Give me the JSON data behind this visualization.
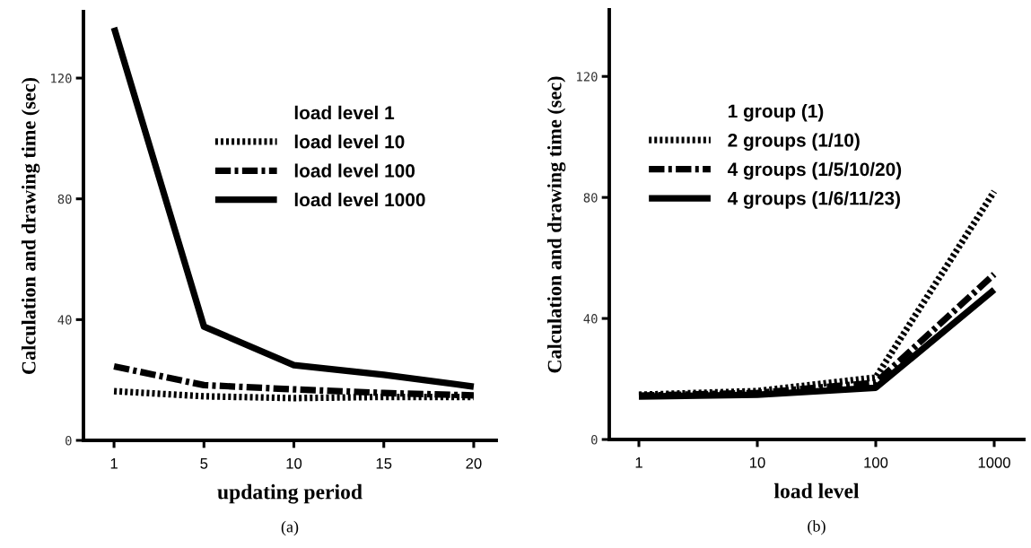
{
  "chart_data": [
    {
      "type": "line",
      "xlabel": "updating period",
      "ylabel": "Calculation and drawing time (sec)",
      "categories": [
        "1",
        "5",
        "10",
        "15",
        "20"
      ],
      "ylim": [
        0,
        142
      ],
      "yticks": [
        0,
        40,
        80,
        120
      ],
      "legend": "top right",
      "annotations": [
        "(a)"
      ],
      "series": [
        {
          "name": "load level 1",
          "values": [
            null,
            null,
            null,
            null,
            null
          ]
        },
        {
          "name": "load level 10",
          "color": "#000000",
          "line_style": "dotted",
          "values": [
            16.3,
            14.6,
            14.0,
            14.4,
            14.4
          ]
        },
        {
          "name": "load level 100",
          "color": "#000000",
          "line_style": "dashdot",
          "values": [
            24.5,
            18.3,
            16.9,
            15.7,
            14.9
          ]
        },
        {
          "name": "load level 1000",
          "color": "#000000",
          "line_style": "solid",
          "values": [
            136.7,
            37.7,
            24.9,
            21.7,
            17.8
          ]
        }
      ]
    },
    {
      "type": "line",
      "xlabel": "load level",
      "ylabel": "Calculation and drawing time (sec)",
      "categories": [
        "1",
        "10",
        "100",
        "1000"
      ],
      "ylim": [
        0,
        142
      ],
      "yticks": [
        0,
        40,
        80,
        120
      ],
      "legend": "top left",
      "annotations": [
        "(b)"
      ],
      "series": [
        {
          "name": "1 group (1)",
          "values": [
            null,
            null,
            null,
            null
          ]
        },
        {
          "name": "2 groups (1/10)",
          "color": "#000000",
          "line_style": "dotted",
          "values": [
            14.8,
            16.0,
            20.5,
            82
          ]
        },
        {
          "name": "4 groups (1/5/10/20)",
          "color": "#000000",
          "line_style": "dashdot",
          "values": [
            14.5,
            15.4,
            18.8,
            54.6
          ]
        },
        {
          "name": "4 groups (1/6/11/23)",
          "color": "#000000",
          "line_style": "solid",
          "values": [
            14.2,
            14.8,
            17.1,
            49.5
          ]
        }
      ]
    }
  ]
}
